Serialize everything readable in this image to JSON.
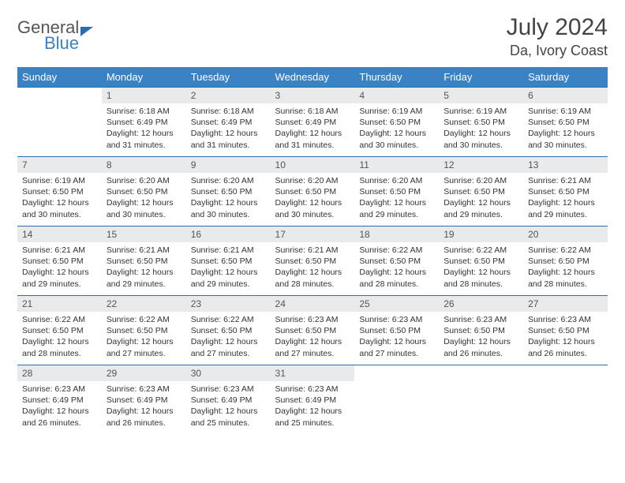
{
  "brand": {
    "part1": "General",
    "part2": "Blue"
  },
  "title": "July 2024",
  "location": "Da, Ivory Coast",
  "colors": {
    "header_bg": "#3b82c4",
    "header_text": "#ffffff",
    "daynum_bg": "#e9eaeb",
    "rule": "#2a6db0",
    "brand_blue": "#3b82c4",
    "brand_gray": "#555555"
  },
  "daysOfWeek": [
    "Sunday",
    "Monday",
    "Tuesday",
    "Wednesday",
    "Thursday",
    "Friday",
    "Saturday"
  ],
  "grid": [
    [
      {
        "empty": true
      },
      {
        "n": "1",
        "sr": "6:18 AM",
        "ss": "6:49 PM",
        "dl": "12 hours and 31 minutes."
      },
      {
        "n": "2",
        "sr": "6:18 AM",
        "ss": "6:49 PM",
        "dl": "12 hours and 31 minutes."
      },
      {
        "n": "3",
        "sr": "6:18 AM",
        "ss": "6:49 PM",
        "dl": "12 hours and 31 minutes."
      },
      {
        "n": "4",
        "sr": "6:19 AM",
        "ss": "6:50 PM",
        "dl": "12 hours and 30 minutes."
      },
      {
        "n": "5",
        "sr": "6:19 AM",
        "ss": "6:50 PM",
        "dl": "12 hours and 30 minutes."
      },
      {
        "n": "6",
        "sr": "6:19 AM",
        "ss": "6:50 PM",
        "dl": "12 hours and 30 minutes."
      }
    ],
    [
      {
        "n": "7",
        "sr": "6:19 AM",
        "ss": "6:50 PM",
        "dl": "12 hours and 30 minutes."
      },
      {
        "n": "8",
        "sr": "6:20 AM",
        "ss": "6:50 PM",
        "dl": "12 hours and 30 minutes."
      },
      {
        "n": "9",
        "sr": "6:20 AM",
        "ss": "6:50 PM",
        "dl": "12 hours and 30 minutes."
      },
      {
        "n": "10",
        "sr": "6:20 AM",
        "ss": "6:50 PM",
        "dl": "12 hours and 30 minutes."
      },
      {
        "n": "11",
        "sr": "6:20 AM",
        "ss": "6:50 PM",
        "dl": "12 hours and 29 minutes."
      },
      {
        "n": "12",
        "sr": "6:20 AM",
        "ss": "6:50 PM",
        "dl": "12 hours and 29 minutes."
      },
      {
        "n": "13",
        "sr": "6:21 AM",
        "ss": "6:50 PM",
        "dl": "12 hours and 29 minutes."
      }
    ],
    [
      {
        "n": "14",
        "sr": "6:21 AM",
        "ss": "6:50 PM",
        "dl": "12 hours and 29 minutes."
      },
      {
        "n": "15",
        "sr": "6:21 AM",
        "ss": "6:50 PM",
        "dl": "12 hours and 29 minutes."
      },
      {
        "n": "16",
        "sr": "6:21 AM",
        "ss": "6:50 PM",
        "dl": "12 hours and 29 minutes."
      },
      {
        "n": "17",
        "sr": "6:21 AM",
        "ss": "6:50 PM",
        "dl": "12 hours and 28 minutes."
      },
      {
        "n": "18",
        "sr": "6:22 AM",
        "ss": "6:50 PM",
        "dl": "12 hours and 28 minutes."
      },
      {
        "n": "19",
        "sr": "6:22 AM",
        "ss": "6:50 PM",
        "dl": "12 hours and 28 minutes."
      },
      {
        "n": "20",
        "sr": "6:22 AM",
        "ss": "6:50 PM",
        "dl": "12 hours and 28 minutes."
      }
    ],
    [
      {
        "n": "21",
        "sr": "6:22 AM",
        "ss": "6:50 PM",
        "dl": "12 hours and 28 minutes."
      },
      {
        "n": "22",
        "sr": "6:22 AM",
        "ss": "6:50 PM",
        "dl": "12 hours and 27 minutes."
      },
      {
        "n": "23",
        "sr": "6:22 AM",
        "ss": "6:50 PM",
        "dl": "12 hours and 27 minutes."
      },
      {
        "n": "24",
        "sr": "6:23 AM",
        "ss": "6:50 PM",
        "dl": "12 hours and 27 minutes."
      },
      {
        "n": "25",
        "sr": "6:23 AM",
        "ss": "6:50 PM",
        "dl": "12 hours and 27 minutes."
      },
      {
        "n": "26",
        "sr": "6:23 AM",
        "ss": "6:50 PM",
        "dl": "12 hours and 26 minutes."
      },
      {
        "n": "27",
        "sr": "6:23 AM",
        "ss": "6:50 PM",
        "dl": "12 hours and 26 minutes."
      }
    ],
    [
      {
        "n": "28",
        "sr": "6:23 AM",
        "ss": "6:49 PM",
        "dl": "12 hours and 26 minutes."
      },
      {
        "n": "29",
        "sr": "6:23 AM",
        "ss": "6:49 PM",
        "dl": "12 hours and 26 minutes."
      },
      {
        "n": "30",
        "sr": "6:23 AM",
        "ss": "6:49 PM",
        "dl": "12 hours and 25 minutes."
      },
      {
        "n": "31",
        "sr": "6:23 AM",
        "ss": "6:49 PM",
        "dl": "12 hours and 25 minutes."
      },
      {
        "empty": true
      },
      {
        "empty": true
      },
      {
        "empty": true
      }
    ]
  ],
  "labels": {
    "sunrise": "Sunrise:",
    "sunset": "Sunset:",
    "daylight": "Daylight:"
  }
}
